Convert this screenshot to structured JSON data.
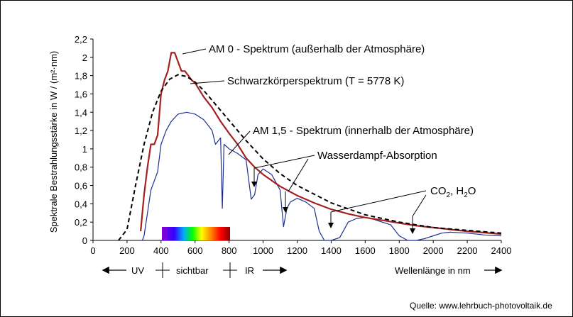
{
  "chart_data": {
    "type": "line",
    "ylabel": "Spektrale Bestrahlungsstärke  in W / (m²·nm)",
    "xlabel": "Wellenlänge in nm",
    "xlim": [
      0,
      2400
    ],
    "ylim": [
      0,
      2.2
    ],
    "xticks": [
      "0",
      "200",
      "400",
      "600",
      "800",
      "1000",
      "1200",
      "1400",
      "1600",
      "1800",
      "2000",
      "2200",
      "2400"
    ],
    "yticks": [
      "0",
      "0,2",
      "0,4",
      "0,6",
      "0,8",
      "1",
      "1,2",
      "1,4",
      "1,6",
      "1,8",
      "2",
      "2,2"
    ],
    "grid": false,
    "series": [
      {
        "name": "AM 0 - Spektrum (außerhalb der Atmosphäre)",
        "color": "#a52020",
        "x": [
          280,
          300,
          320,
          340,
          360,
          380,
          400,
          420,
          440,
          460,
          480,
          500,
          520,
          540,
          560,
          580,
          600,
          650,
          700,
          750,
          800,
          850,
          900,
          950,
          1000,
          1100,
          1200,
          1300,
          1400,
          1500,
          1600,
          1700,
          1800,
          1900,
          2000,
          2100,
          2200,
          2300,
          2400
        ],
        "y": [
          0.1,
          0.5,
          0.8,
          1.05,
          1.05,
          1.15,
          1.6,
          1.75,
          1.85,
          2.05,
          2.05,
          1.95,
          1.85,
          1.85,
          1.8,
          1.75,
          1.72,
          1.57,
          1.45,
          1.3,
          1.17,
          1.05,
          0.9,
          0.8,
          0.72,
          0.59,
          0.49,
          0.41,
          0.34,
          0.29,
          0.25,
          0.22,
          0.19,
          0.16,
          0.14,
          0.12,
          0.1,
          0.085,
          0.07
        ]
      },
      {
        "name": "Schwarzkörperspektrum  (T = 5778 K)",
        "color": "#000000",
        "x": [
          150,
          200,
          250,
          300,
          350,
          400,
          450,
          500,
          550,
          600,
          650,
          700,
          800,
          900,
          1000,
          1100,
          1200,
          1400,
          1600,
          1800,
          2000,
          2200,
          2400
        ],
        "y": [
          0.0,
          0.12,
          0.6,
          1.05,
          1.4,
          1.63,
          1.76,
          1.81,
          1.79,
          1.73,
          1.64,
          1.53,
          1.31,
          1.09,
          0.89,
          0.73,
          0.6,
          0.41,
          0.28,
          0.2,
          0.14,
          0.11,
          0.08
        ]
      },
      {
        "name": "AM 1,5 - Spektrum (innerhalb der Atmosphäre)",
        "color": "#1f2f8f",
        "x": [
          290,
          300,
          320,
          340,
          360,
          380,
          400,
          430,
          460,
          500,
          550,
          600,
          650,
          680,
          700,
          720,
          750,
          760,
          770,
          800,
          850,
          900,
          930,
          950,
          970,
          1000,
          1050,
          1100,
          1120,
          1140,
          1160,
          1200,
          1250,
          1300,
          1330,
          1360,
          1400,
          1450,
          1500,
          1550,
          1600,
          1650,
          1700,
          1750,
          1800,
          1850,
          1900,
          1950,
          2000,
          2050,
          2100,
          2200,
          2300,
          2400
        ],
        "y": [
          0.0,
          0.05,
          0.3,
          0.55,
          0.65,
          0.75,
          1.05,
          1.2,
          1.3,
          1.38,
          1.4,
          1.38,
          1.32,
          1.25,
          1.2,
          1.05,
          1.12,
          0.35,
          1.05,
          1.0,
          0.95,
          0.88,
          0.45,
          0.5,
          0.72,
          0.78,
          0.72,
          0.55,
          0.15,
          0.35,
          0.42,
          0.46,
          0.42,
          0.35,
          0.1,
          0.0,
          0.0,
          0.03,
          0.2,
          0.24,
          0.25,
          0.23,
          0.2,
          0.17,
          0.05,
          0.0,
          0.0,
          0.02,
          0.05,
          0.08,
          0.09,
          0.08,
          0.06,
          0.05
        ]
      }
    ],
    "annotations": [
      {
        "text": "AM 0 - Spektrum  (außerhalb der Atmosphäre)"
      },
      {
        "text": "Schwarzkörperspektrum  (T = 5778 K)"
      },
      {
        "text": "AM 1,5 - Spektrum  (innerhalb der Atmosphäre)"
      },
      {
        "text": "Wasserdampf-Absorption"
      },
      {
        "text": "CO₂, H₂O"
      }
    ]
  },
  "bands": {
    "uv": "UV",
    "visible": "sichtbar",
    "ir": "IR"
  },
  "source": "Quelle: www.lehrbuch-photovoltaik.de"
}
